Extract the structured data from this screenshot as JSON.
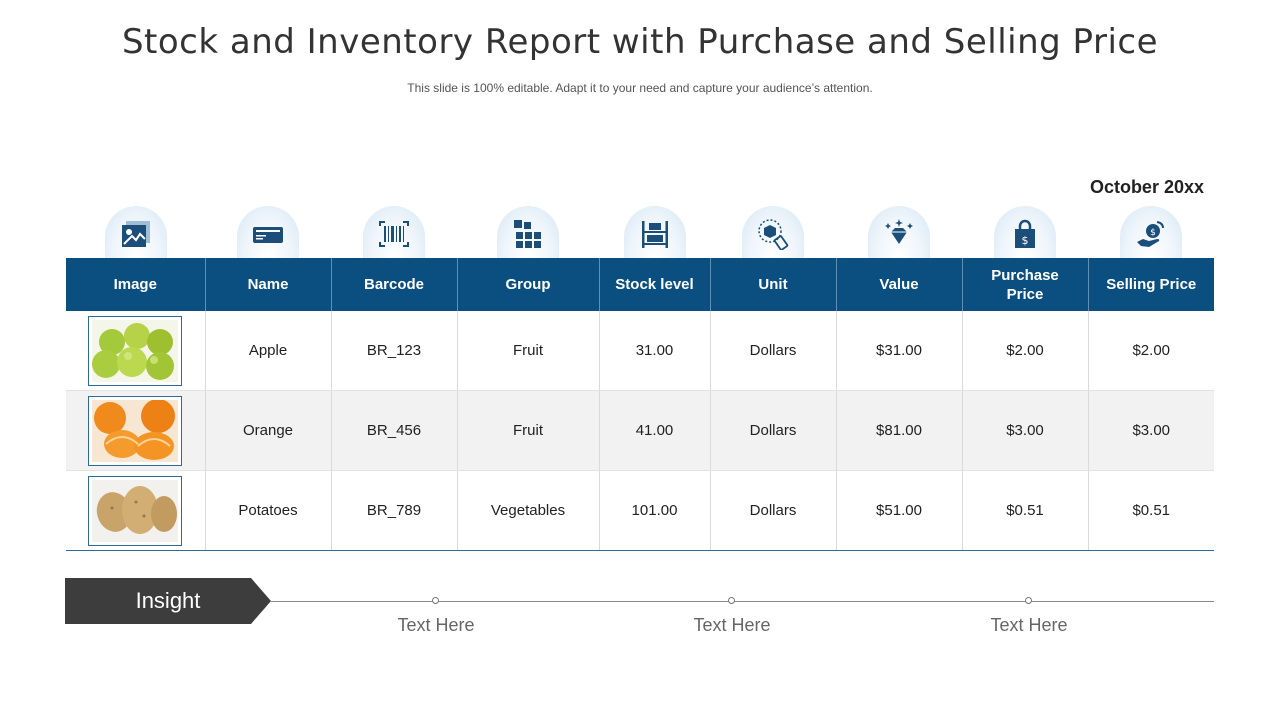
{
  "title": "Stock and Inventory Report with Purchase and Selling Price",
  "subtitle": "This slide is 100% editable. Adapt it to your need and capture your audience’s attention.",
  "date": "October 20xx",
  "colors": {
    "header_bg": "#0b4f80",
    "icon_fill": "#1b4f7a",
    "insight_bg": "#3d3d3d",
    "alt_row": "#f2f2f2"
  },
  "table": {
    "headers": [
      "Image",
      "Name",
      "Barcode",
      "Group",
      "Stock level",
      "Unit",
      "Value",
      "Purchase Price",
      "Selling Price"
    ],
    "header_icons": [
      "image-icon",
      "id-card-icon",
      "barcode-icon",
      "grid-blocks-icon",
      "shelf-stock-icon",
      "box-tag-icon",
      "diamond-icon",
      "shopping-bag-dollar-icon",
      "hand-coin-icon"
    ],
    "rows": [
      {
        "image": "apples-photo",
        "name": "Apple",
        "barcode": "BR_123",
        "group": "Fruit",
        "stock": "31.00",
        "unit": "Dollars",
        "value": "$31.00",
        "purchase": "$2.00",
        "selling": "$2.00"
      },
      {
        "image": "orange-photo",
        "name": "Orange",
        "barcode": "BR_456",
        "group": "Fruit",
        "stock": "41.00",
        "unit": "Dollars",
        "value": "$81.00",
        "purchase": "$3.00",
        "selling": "$3.00"
      },
      {
        "image": "potatoes-photo",
        "name": "Potatoes",
        "barcode": "BR_789",
        "group": "Vegetables",
        "stock": "101.00",
        "unit": "Dollars",
        "value": "$51.00",
        "purchase": "$0.51",
        "selling": "$0.51"
      }
    ]
  },
  "insight": {
    "label": "Insight",
    "points": [
      "Text Here",
      "Text Here",
      "Text Here"
    ]
  }
}
